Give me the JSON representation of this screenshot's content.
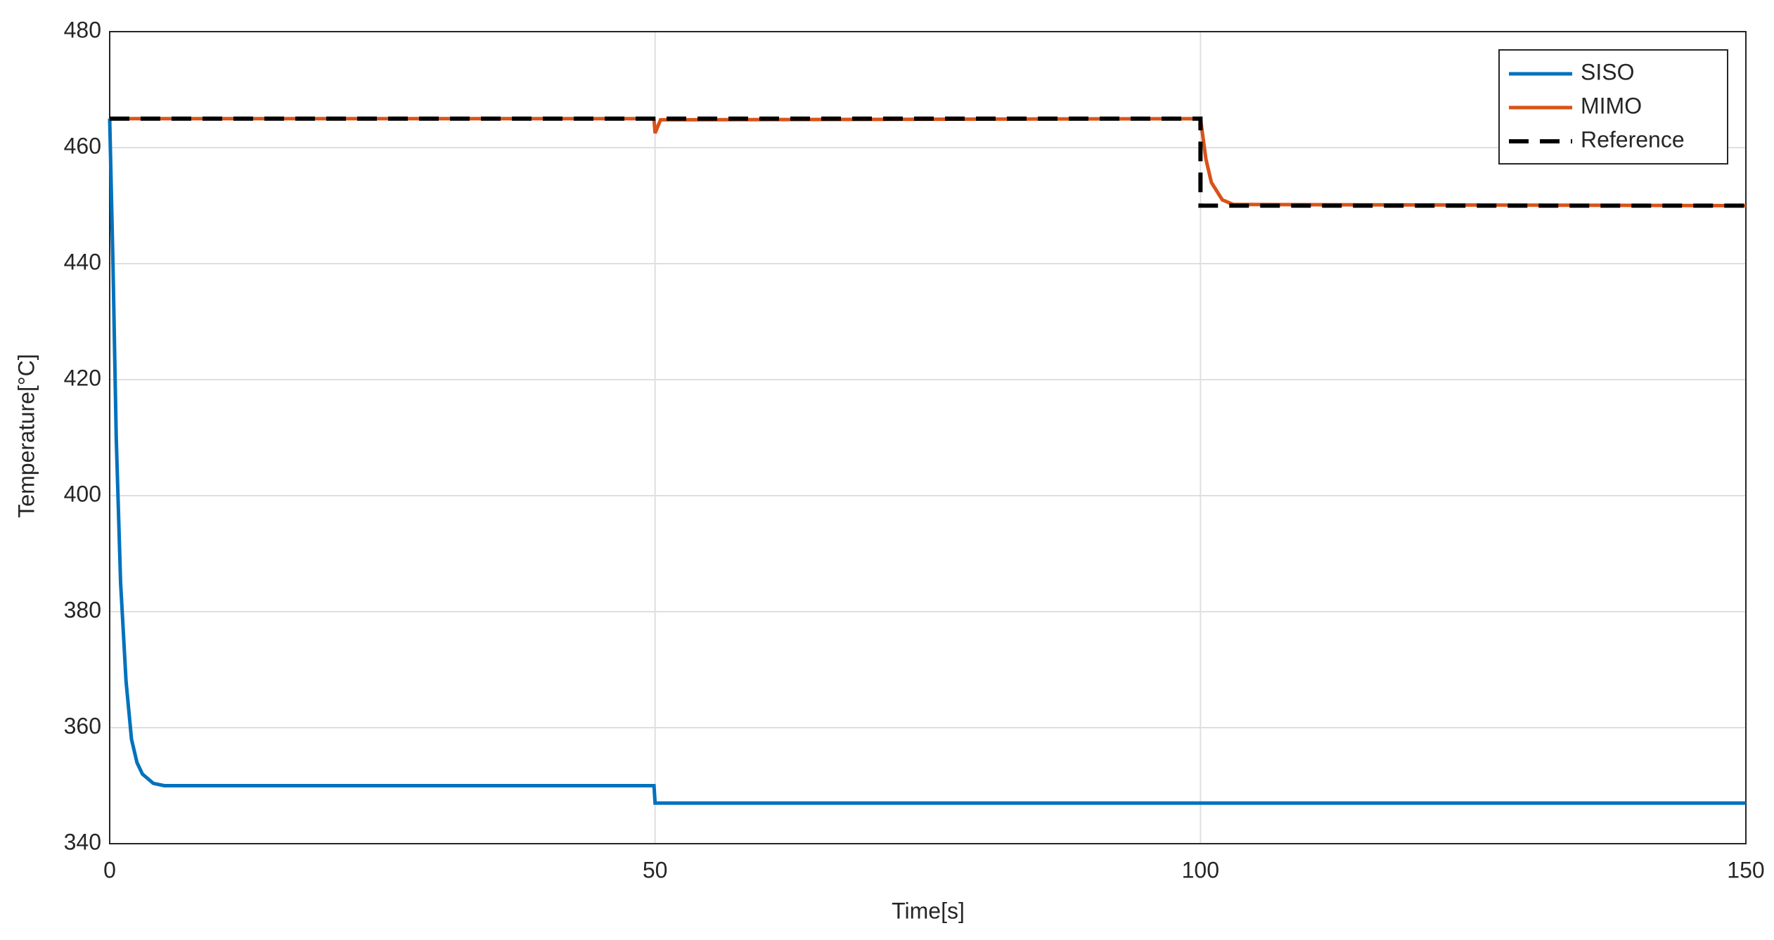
{
  "chart_data": {
    "type": "line",
    "xlabel": "Time[s]",
    "ylabel": "Temperature[°C]",
    "xlim": [
      0,
      150
    ],
    "ylim": [
      340,
      480
    ],
    "xticks": [
      0,
      50,
      100,
      150
    ],
    "yticks": [
      340,
      360,
      380,
      400,
      420,
      440,
      460,
      480
    ],
    "grid": true,
    "legend": "upper right",
    "series": [
      {
        "name": "SISO",
        "color": "#0072bd",
        "dash": "solid",
        "x": [
          0,
          0.3,
          0.6,
          1,
          1.5,
          2,
          2.5,
          3,
          4,
          5,
          49.9,
          50,
          100,
          150
        ],
        "values": [
          465,
          440,
          410,
          385,
          368,
          358,
          354,
          352,
          350.4,
          350,
          350,
          347,
          347,
          347
        ]
      },
      {
        "name": "MIMO",
        "color": "#d95319",
        "dash": "solid",
        "x": [
          0,
          49.9,
          50,
          50.5,
          100,
          100.5,
          101,
          102,
          103,
          150
        ],
        "values": [
          465,
          465,
          462.5,
          464.8,
          465,
          458,
          454,
          451,
          450.2,
          450
        ]
      },
      {
        "name": "Reference",
        "color": "#000000",
        "dash": "dashed",
        "x": [
          0,
          100,
          100,
          150
        ],
        "values": [
          465,
          465,
          450,
          450
        ]
      }
    ]
  }
}
